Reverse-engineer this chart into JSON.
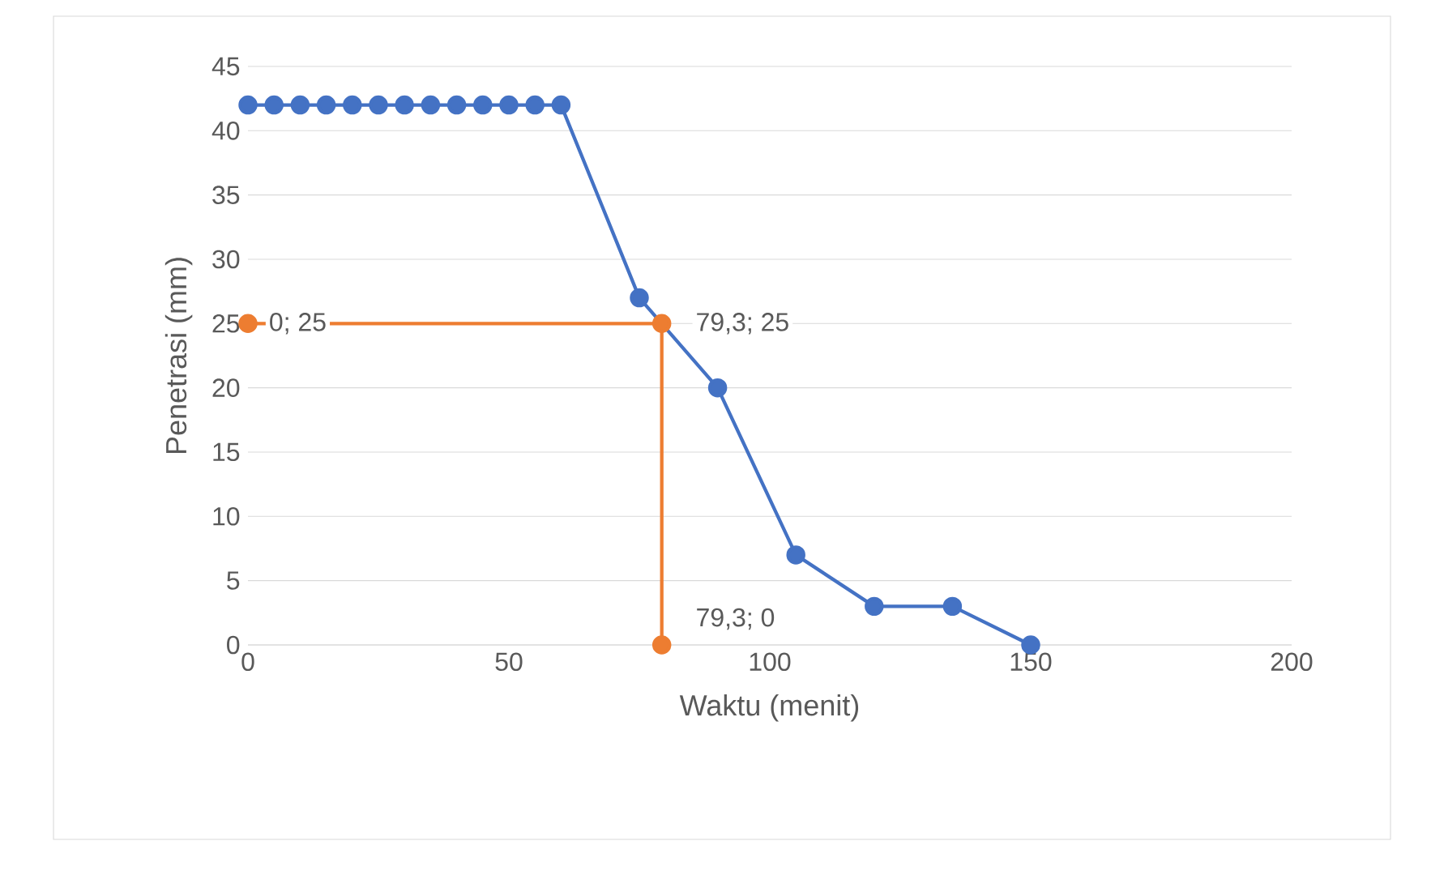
{
  "chart_data": {
    "type": "line",
    "xlabel": "Waktu (menit)",
    "ylabel": "Penetrasi (mm)",
    "series": [
      {
        "color": "#4472c4",
        "x": [
          0,
          5,
          10,
          15,
          20,
          25,
          30,
          35,
          40,
          45,
          50,
          55,
          60,
          75,
          90,
          105,
          120,
          135,
          150
        ],
        "values": [
          42,
          42,
          42,
          42,
          42,
          42,
          42,
          42,
          42,
          42,
          42,
          42,
          42,
          27,
          20,
          7,
          3,
          3,
          0
        ]
      },
      {
        "color": "#ed7d31",
        "x": [
          0,
          79.3,
          79.3
        ],
        "values": [
          25,
          25,
          0
        ],
        "value_labels": [
          "0; 25",
          "79,3; 25",
          "79,3; 0"
        ]
      }
    ],
    "xlim": [
      0,
      200
    ],
    "xticks": [
      0,
      50,
      100,
      150,
      200
    ],
    "ylim": [
      0,
      45
    ],
    "yticks": [
      0,
      5,
      10,
      15,
      20,
      25,
      30,
      35,
      40,
      45
    ],
    "grid": "y",
    "marker": "circle"
  }
}
